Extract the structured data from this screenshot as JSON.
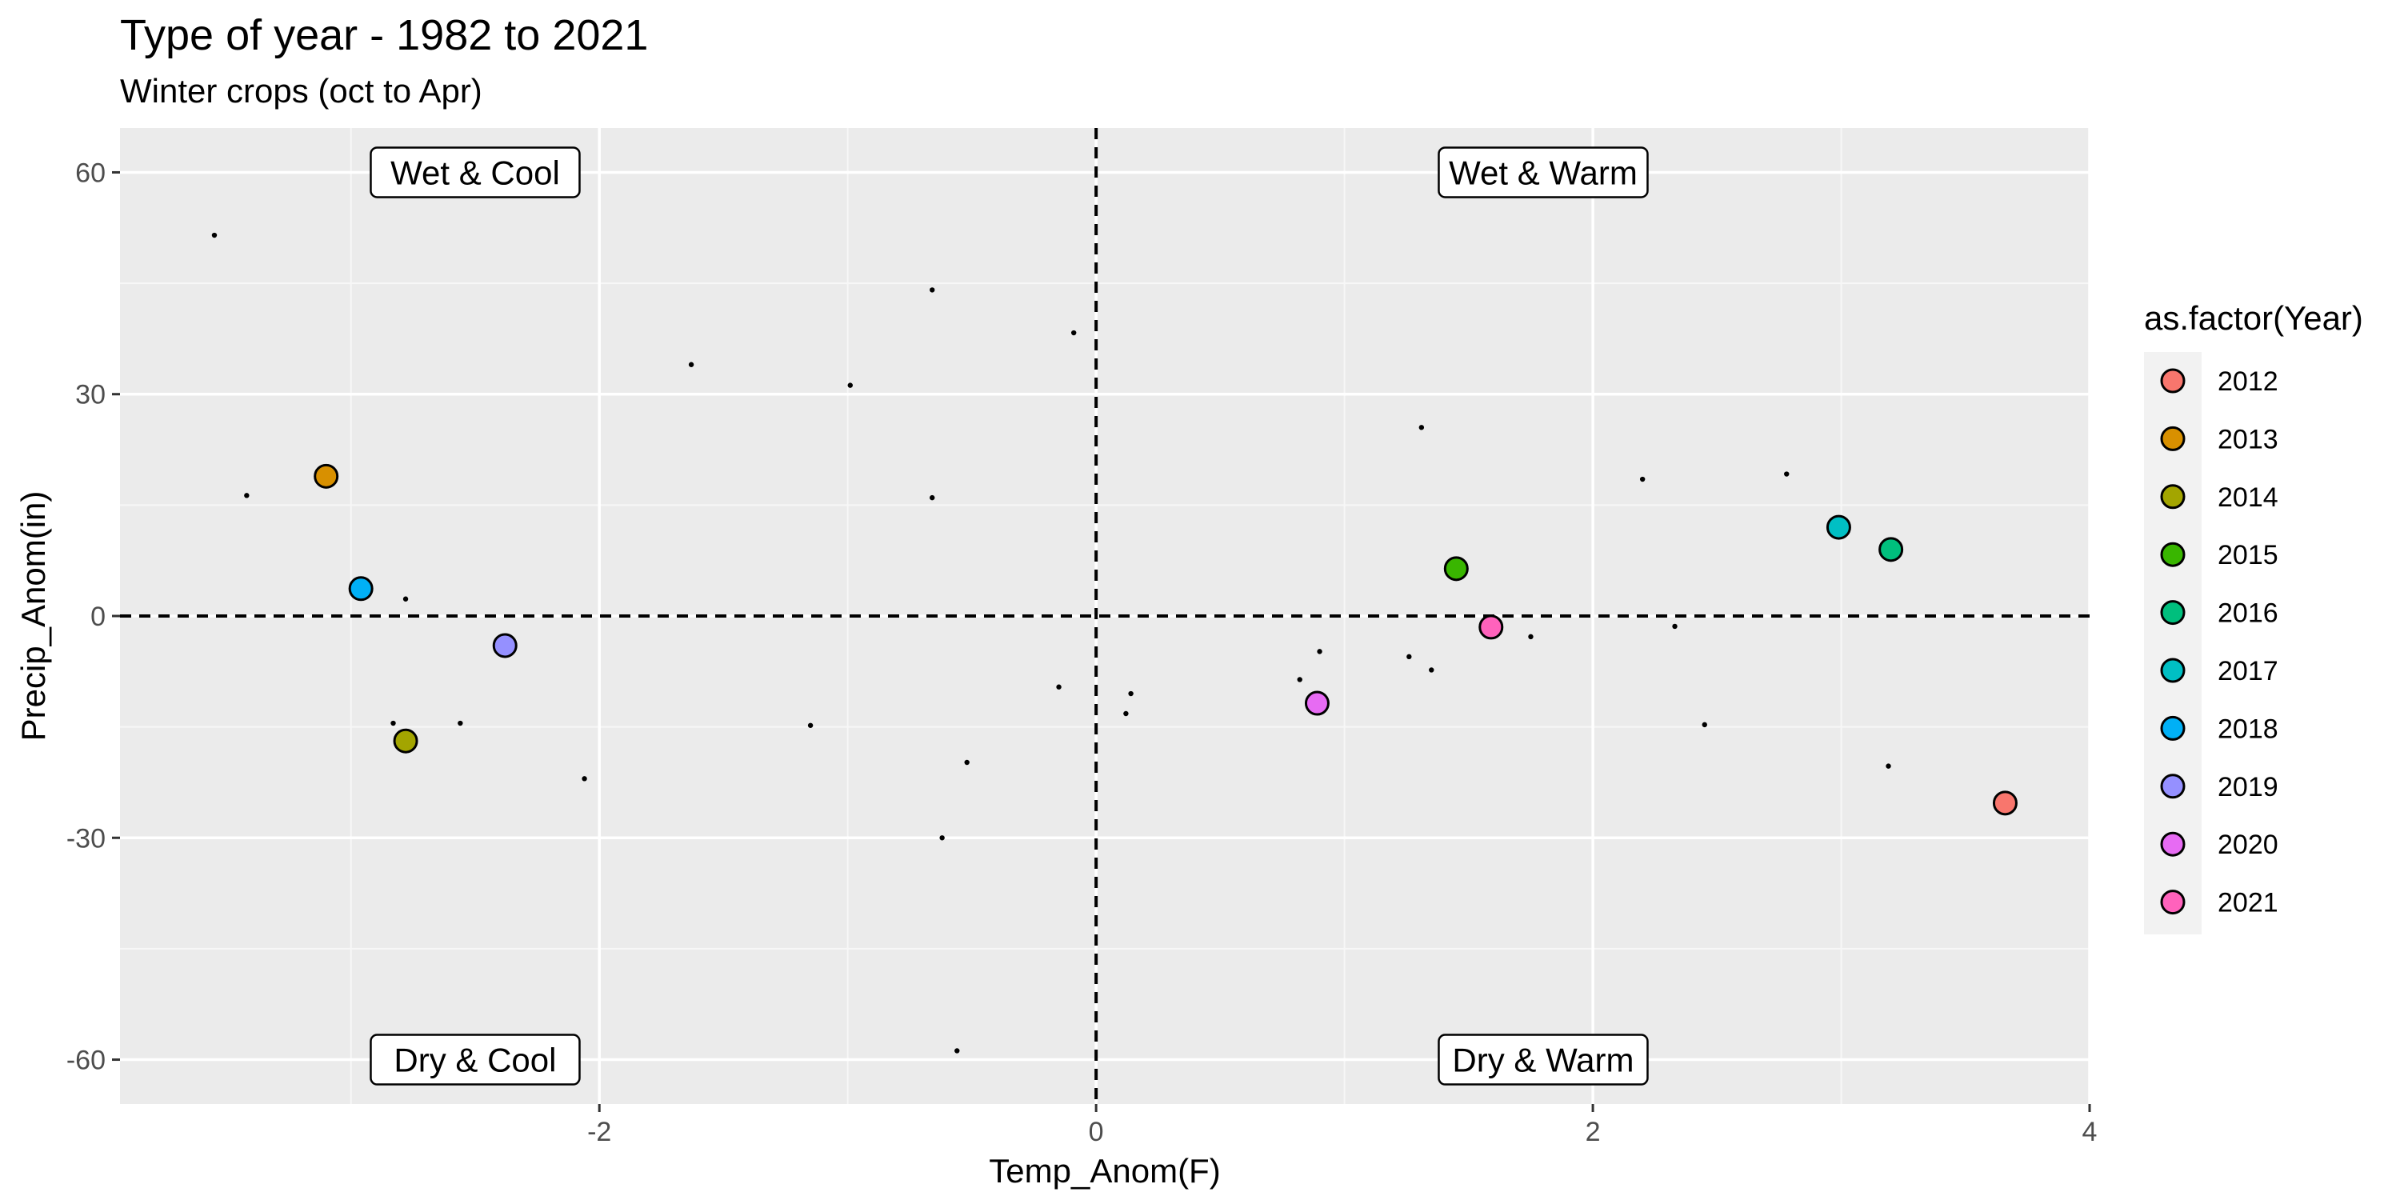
{
  "chart_data": {
    "type": "scatter",
    "title": "Type of year - 1982 to 2021",
    "subtitle": "Winter crops (oct to Apr)",
    "xlabel": "Temp_Anom(F)",
    "ylabel": "Precip_Anom(in)",
    "xlim": [
      -3.93,
      4.0
    ],
    "ylim": [
      -66,
      66
    ],
    "x_ticks": [
      -2,
      0,
      2,
      4
    ],
    "y_ticks": [
      -60,
      -30,
      0,
      30,
      60
    ],
    "x_tick_labels": [
      "-2",
      "0",
      "2",
      "4"
    ],
    "y_tick_labels": [
      "-60",
      "-30",
      "0",
      "30",
      "60"
    ],
    "grid": true,
    "panel_color": "#ebebeb",
    "reference_lines": {
      "x": 0,
      "y": 0,
      "style": "dashed"
    },
    "quadrant_labels": [
      {
        "text": "Wet & Cool",
        "x": -2.5,
        "y": 60
      },
      {
        "text": "Wet & Warm",
        "x": 1.8,
        "y": 60
      },
      {
        "text": "Dry & Cool",
        "x": -2.5,
        "y": -60
      },
      {
        "text": "Dry & Warm",
        "x": 1.8,
        "y": -60
      }
    ],
    "background_points": [
      {
        "x": -3.55,
        "y": 51.5
      },
      {
        "x": -3.42,
        "y": 16.3
      },
      {
        "x": -2.78,
        "y": 2.3
      },
      {
        "x": -2.83,
        "y": -14.5
      },
      {
        "x": -2.56,
        "y": -14.5
      },
      {
        "x": -2.06,
        "y": -22.0
      },
      {
        "x": -1.63,
        "y": 34.0
      },
      {
        "x": -1.15,
        "y": -14.8
      },
      {
        "x": -0.99,
        "y": 31.2
      },
      {
        "x": -0.66,
        "y": 44.1
      },
      {
        "x": -0.66,
        "y": 16.0
      },
      {
        "x": -0.52,
        "y": -19.8
      },
      {
        "x": -0.62,
        "y": -30.0
      },
      {
        "x": -0.56,
        "y": -58.8
      },
      {
        "x": -0.09,
        "y": 38.3
      },
      {
        "x": -0.15,
        "y": -9.6
      },
      {
        "x": 0.14,
        "y": -10.5
      },
      {
        "x": 0.12,
        "y": -13.2
      },
      {
        "x": 0.82,
        "y": -8.6
      },
      {
        "x": 0.9,
        "y": -4.8
      },
      {
        "x": 1.26,
        "y": -5.5
      },
      {
        "x": 1.35,
        "y": -7.3
      },
      {
        "x": 1.31,
        "y": 25.5
      },
      {
        "x": 1.75,
        "y": -2.8
      },
      {
        "x": 2.2,
        "y": 18.5
      },
      {
        "x": 2.33,
        "y": -1.4
      },
      {
        "x": 2.45,
        "y": -14.7
      },
      {
        "x": 2.78,
        "y": 19.2
      },
      {
        "x": 3.19,
        "y": -20.3
      }
    ],
    "series": [
      {
        "name": "2012",
        "color": "#F8766D",
        "x": 3.66,
        "y": -25.3
      },
      {
        "name": "2013",
        "color": "#D89000",
        "x": -3.1,
        "y": 18.9
      },
      {
        "name": "2014",
        "color": "#A3A500",
        "x": -2.78,
        "y": -16.9
      },
      {
        "name": "2015",
        "color": "#39B600",
        "x": 1.45,
        "y": 6.4
      },
      {
        "name": "2016",
        "color": "#00BF7D",
        "x": 3.2,
        "y": 9.0
      },
      {
        "name": "2017",
        "color": "#00BFC4",
        "x": 2.99,
        "y": 12.0
      },
      {
        "name": "2018",
        "color": "#00B0F6",
        "x": -2.96,
        "y": 3.7
      },
      {
        "name": "2019",
        "color": "#9590FF",
        "x": -2.38,
        "y": -4.0
      },
      {
        "name": "2020",
        "color": "#E76BF3",
        "x": 0.89,
        "y": -11.8
      },
      {
        "name": "2021",
        "color": "#FF62BC",
        "x": 1.59,
        "y": -1.5
      }
    ],
    "legend": {
      "title": "as.factor(Year)",
      "placement": "right"
    }
  }
}
